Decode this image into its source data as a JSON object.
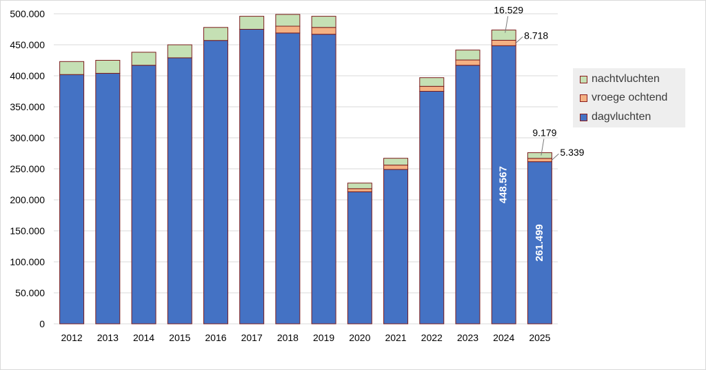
{
  "chart_data": {
    "type": "bar",
    "stacked": true,
    "categories": [
      "2012",
      "2013",
      "2014",
      "2015",
      "2016",
      "2017",
      "2018",
      "2019",
      "2020",
      "2021",
      "2022",
      "2023",
      "2024",
      "2025"
    ],
    "series": [
      {
        "name": "dagvluchten",
        "color": "#4472c4",
        "values": [
          402000,
          404000,
          417000,
          429000,
          457000,
          475000,
          469000,
          467000,
          213000,
          249000,
          375000,
          417000,
          448567,
          261499
        ]
      },
      {
        "name": "vroege ochtend",
        "color": "#f4b183",
        "values": [
          0,
          0,
          0,
          0,
          0,
          0,
          11000,
          11000,
          5000,
          7000,
          8000,
          8500,
          8718,
          5339
        ]
      },
      {
        "name": "nachtvluchten",
        "color": "#c5e0b4",
        "values": [
          21000,
          21000,
          21000,
          21000,
          21000,
          21000,
          19000,
          18000,
          9000,
          11000,
          14000,
          16000,
          16529,
          9179
        ]
      }
    ],
    "ylim": [
      0,
      500000
    ],
    "yticks": [
      "0",
      "50.000",
      "100.000",
      "150.000",
      "200.000",
      "250.000",
      "300.000",
      "350.000",
      "400.000",
      "450.000",
      "500.000"
    ],
    "grid": true,
    "legend_position": "right",
    "annotations": [
      {
        "category": "2024",
        "series": "nachtvluchten",
        "text": "16.529"
      },
      {
        "category": "2024",
        "series": "vroege ochtend",
        "text": "8.718"
      },
      {
        "category": "2024",
        "series": "dagvluchten",
        "text": "448.567"
      },
      {
        "category": "2025",
        "series": "nachtvluchten",
        "text": "9.179"
      },
      {
        "category": "2025",
        "series": "vroege ochtend",
        "text": "5.339"
      },
      {
        "category": "2025",
        "series": "dagvluchten",
        "text": "261.499"
      }
    ]
  },
  "legend": {
    "items": [
      {
        "label": "nachtvluchten",
        "color": "#c5e0b4"
      },
      {
        "label": "vroege ochtend",
        "color": "#f4b183"
      },
      {
        "label": "dagvluchten",
        "color": "#4472c4"
      }
    ]
  }
}
